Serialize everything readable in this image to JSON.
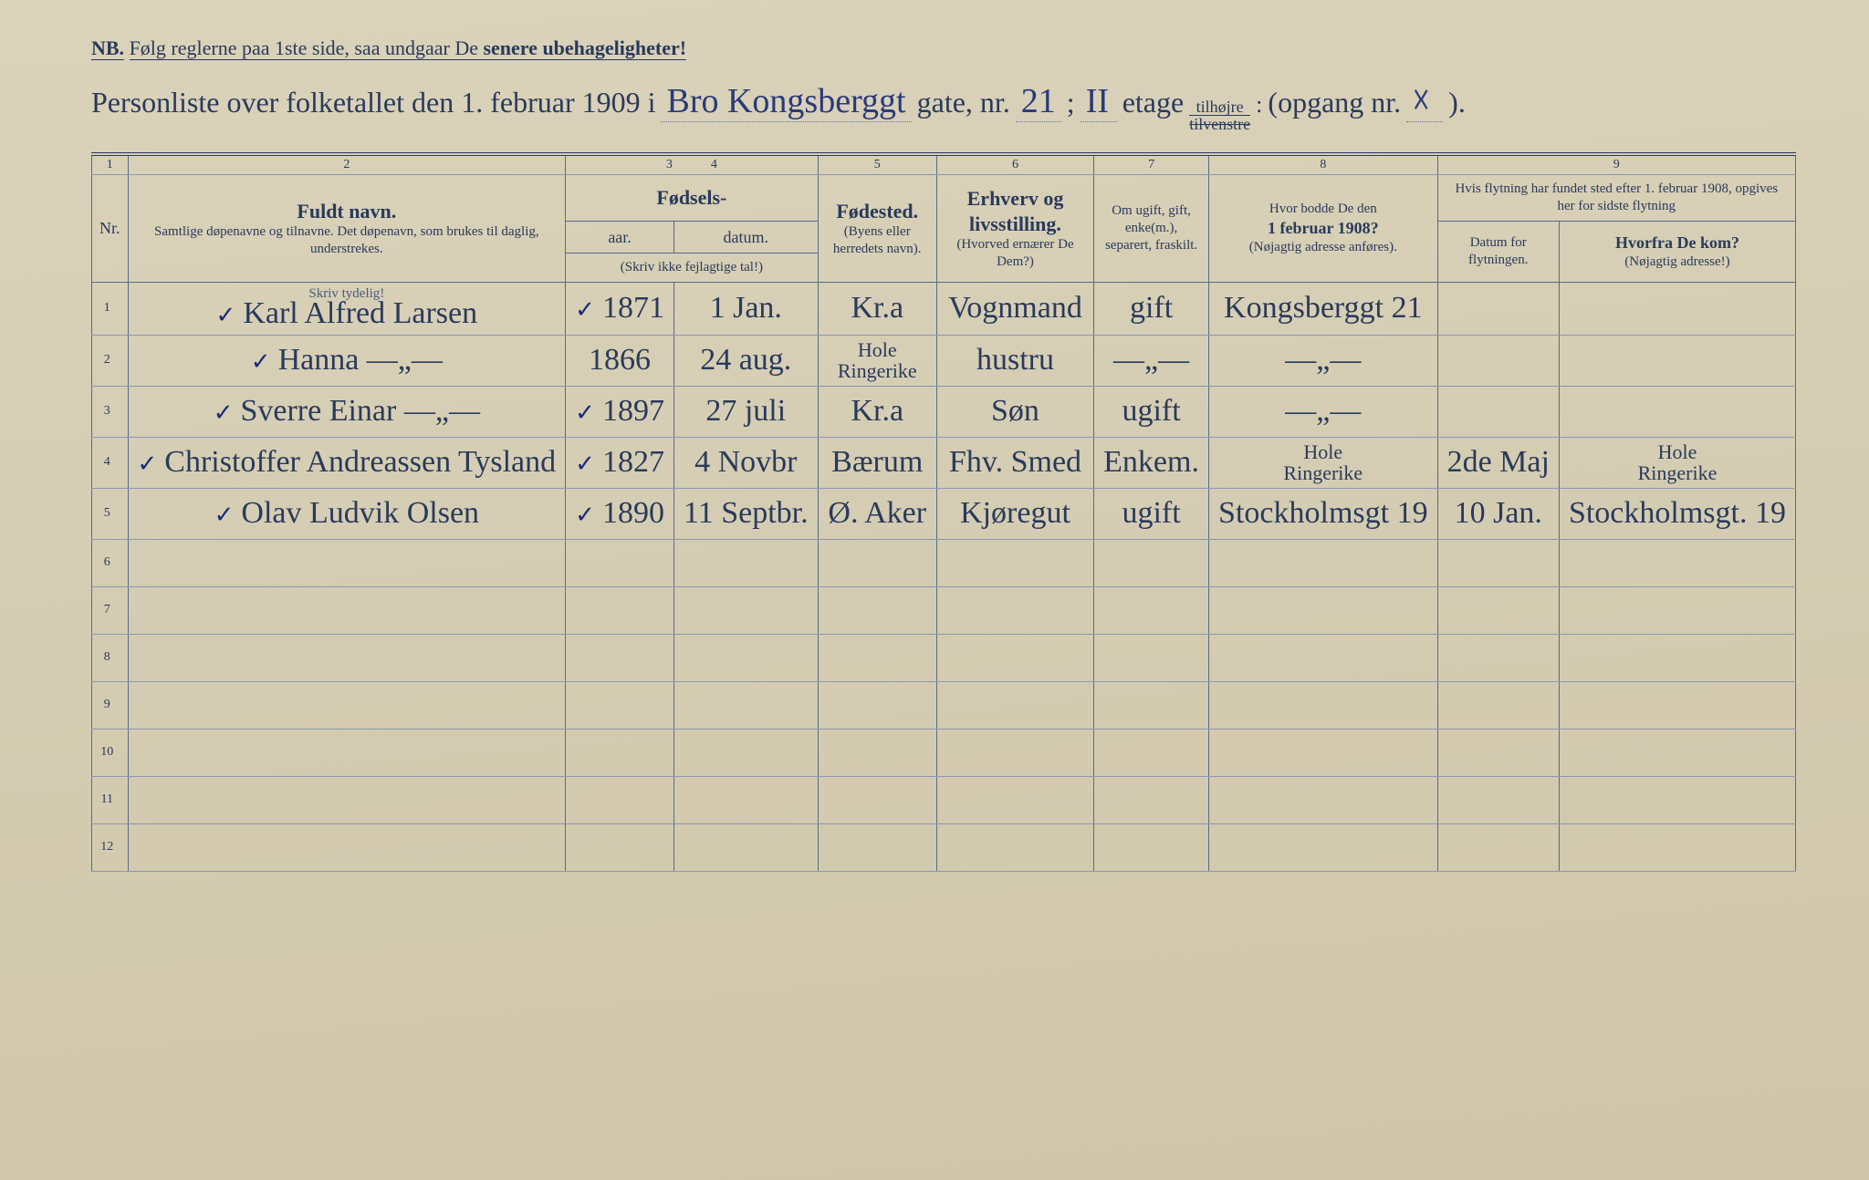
{
  "page": {
    "background_color": "#d8d0b8",
    "ink_color": "#2a3a5a",
    "handwriting_color": "#1a2a7a",
    "rule_color": "#5a6a8a"
  },
  "header": {
    "nb_label": "NB.",
    "nb_text": "Følg reglerne paa 1ste side, saa undgaar De ",
    "nb_emph": "senere ubehageligheter!",
    "title_prefix": "Personliste over folketallet den 1. februar 1909 i",
    "street_handwritten": "Bro Kongsberggt",
    "gate_label": "gate, nr.",
    "house_nr": "21",
    "semicolon": ";",
    "floor_nr": "II",
    "etage_label": "etage",
    "side_top": "tilhøjre",
    "side_bot": "tilvenstre",
    "opgang_label": "(opgang nr.",
    "opgang_nr": "☓",
    "close_paren": ")."
  },
  "columns": {
    "numbers": [
      "1",
      "2",
      "3",
      "4",
      "5",
      "6",
      "7",
      "8",
      "9"
    ],
    "nr": "Nr.",
    "name_main": "Fuldt navn.",
    "name_sub": "Samtlige døpenavne og tilnavne. Det døpenavn, som brukes til daglig, understrekes.",
    "skriv_tydelig": "Skriv tydelig!",
    "fodsels": "Fødsels-",
    "aar": "aar.",
    "datum": "datum.",
    "aar_sub": "(Skriv ikke fejlagtige tal!)",
    "fodested": "Fødested.",
    "fodested_sub": "(Byens eller herredets navn).",
    "erhverv": "Erhverv og livsstilling.",
    "erhverv_sub": "(Hvorved ernærer De Dem?)",
    "ugift": "Om ugift, gift, enke(m.), separert, fraskilt.",
    "bodde": "Hvor bodde De den",
    "bodde_date": "1 februar 1908?",
    "bodde_sub": "(Nøjagtig adresse anføres).",
    "flytning_top": "Hvis flytning har fundet sted efter 1. februar 1908, opgives her for sidste flytning",
    "flyt_datum": "Datum for flytningen.",
    "flyt_hvorfra": "Hvorfra De kom?",
    "flyt_hvorfra_sub": "(Nøjagtig adresse!)"
  },
  "rows": [
    {
      "n": "1",
      "check": true,
      "name": "Karl Alfred Larsen",
      "year_check": true,
      "year": "1871",
      "date": "1 Jan.",
      "place": "Kr.a",
      "occ": "Vognmand",
      "status": "gift",
      "addr1908": "Kongsberggt 21",
      "flyt_date": "",
      "flyt_from": ""
    },
    {
      "n": "2",
      "check": true,
      "name": "Hanna        —„—",
      "year_check": false,
      "year": "1866",
      "date": "24 aug.",
      "place_top": "Hole",
      "place": "Ringerike",
      "occ": "hustru",
      "status": "—„—",
      "addr1908": "—„—",
      "flyt_date": "",
      "flyt_from": ""
    },
    {
      "n": "3",
      "check": true,
      "name": "Sverre Einar  —„—",
      "year_check": true,
      "year": "1897",
      "date": "27 juli",
      "place": "Kr.a",
      "occ": "Søn",
      "status": "ugift",
      "addr1908": "—„—",
      "flyt_date": "",
      "flyt_from": ""
    },
    {
      "n": "4",
      "check": true,
      "name": "Christoffer Andreassen Tysland",
      "year_check": true,
      "year": "1827",
      "date": "4 Novbr",
      "place": "Bærum",
      "occ": "Fhv. Smed",
      "status": "Enkem.",
      "addr_top": "Hole",
      "addr1908": "Ringerike",
      "flyt_date": "2de Maj",
      "flyt_from_top": "Hole",
      "flyt_from": "Ringerike"
    },
    {
      "n": "5",
      "check": true,
      "name": "Olav Ludvik Olsen",
      "year_check": true,
      "year": "1890",
      "date": "11 Septbr.",
      "place": "Ø. Aker",
      "occ": "Kjøregut",
      "status": "ugift",
      "addr1908": "Stockholmsgt 19",
      "flyt_date": "10 Jan.",
      "flyt_from": "Stockholmsgt. 19"
    }
  ],
  "empty_rows": [
    "6",
    "7",
    "8",
    "9",
    "10",
    "11",
    "12"
  ]
}
